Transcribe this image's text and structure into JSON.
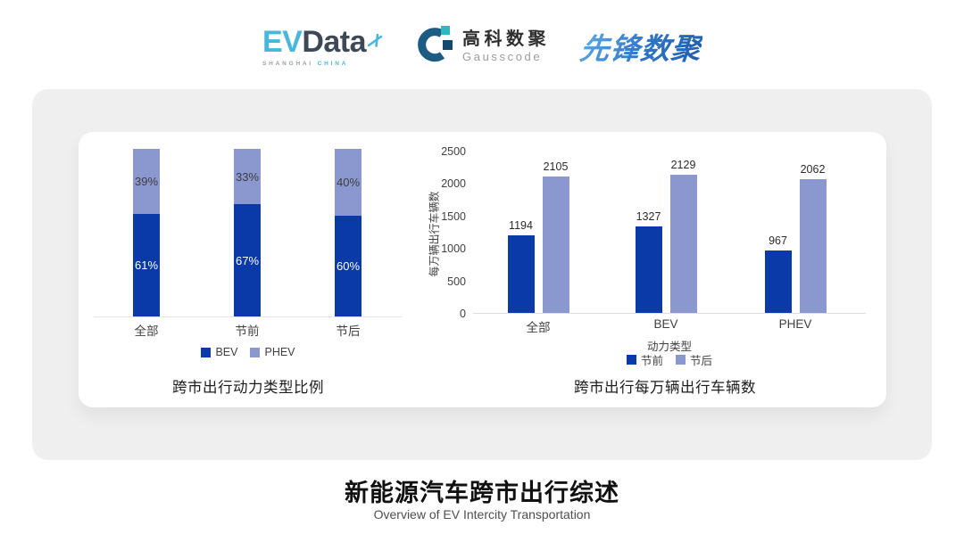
{
  "header": {
    "evdata": {
      "ev": "EV",
      "data": "Data",
      "sub_left": "SHANGHAI",
      "sub_right": "CHINA"
    },
    "gausscode": {
      "cn": "高科数聚",
      "en": "Gausscode"
    },
    "pioneer": {
      "text": "先锋数聚"
    }
  },
  "colors": {
    "series_dark_blue": "#0a3aa8",
    "series_light_periwinkle": "#8b98d0",
    "evdata_blue": "#48b7db",
    "evdata_slate": "#3e4957",
    "gauss_arc_blue": "#1d5c82",
    "gauss_teal": "#2abbbe",
    "gauss_navy": "#14486f"
  },
  "chart_data": [
    {
      "type": "bar",
      "variant": "stacked-100-percent",
      "title": "跨市出行动力类型比例",
      "categories": [
        "全部",
        "节前",
        "节后"
      ],
      "series": [
        {
          "name": "BEV",
          "color": "#0a3aa8",
          "values": [
            61,
            67,
            60
          ]
        },
        {
          "name": "PHEV",
          "color": "#8b98d0",
          "values": [
            39,
            33,
            40
          ]
        }
      ],
      "value_suffix": "%",
      "ylim": [
        0,
        100
      ],
      "grid": false,
      "legend_position": "bottom"
    },
    {
      "type": "bar",
      "variant": "grouped",
      "title": "跨市出行每万辆出行车辆数",
      "categories": [
        "全部",
        "BEV",
        "PHEV"
      ],
      "xlabel": "动力类型",
      "ylabel": "每万辆出行车辆数",
      "series": [
        {
          "name": "节前",
          "color": "#0a3aa8",
          "values": [
            1194,
            1327,
            967
          ]
        },
        {
          "name": "节后",
          "color": "#8b98d0",
          "values": [
            2105,
            2129,
            2062
          ]
        }
      ],
      "ylim": [
        0,
        2500
      ],
      "yticks": [
        0,
        500,
        1000,
        1500,
        2000,
        2500
      ],
      "grid": false,
      "legend_position": "bottom"
    }
  ],
  "footer": {
    "title": "新能源汽车跨市出行综述",
    "subtitle": "Overview of EV Intercity Transportation"
  }
}
